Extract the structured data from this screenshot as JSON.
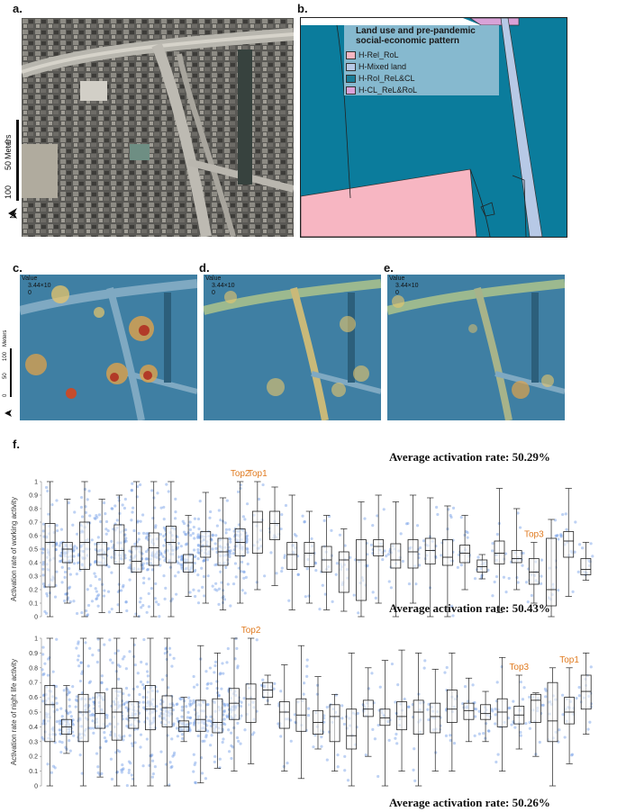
{
  "panels": {
    "a": "a.",
    "b": "b.",
    "c": "c.",
    "d": "d.",
    "e": "e.",
    "f": "f."
  },
  "scale": {
    "meters": "Meters",
    "t100": "100",
    "t50": "50",
    "t0": "0",
    "north": "N"
  },
  "legend": {
    "title": "Land use and pre-pandemic social-economic pattern",
    "items": [
      {
        "label": "H-Rel_RoL",
        "color": "#f7b6c2"
      },
      {
        "label": "H-Mixed land",
        "color": "#b7c9e6"
      },
      {
        "label": "H-RoI_ReL&CL",
        "color": "#1a7d97"
      },
      {
        "label": "H-CL_ReL&RoL",
        "color": "#d9a2d8"
      }
    ]
  },
  "heat_legend": {
    "title": "Value",
    "max": "3.44×10",
    "min": "0"
  },
  "colors": {
    "landuse_main": "#0b7c9c",
    "pink": "#f7b6c2",
    "mixed": "#b7c9e6",
    "violet": "#d9a2d8",
    "box_points": "#6f9be6",
    "top_label": "#e07a1f"
  },
  "averages": {
    "top": "Average activation rate: 50.29%",
    "middle": "Average activation rate: 50.43%",
    "bottom": "Average activation rate: 50.26%"
  },
  "chart_data": [
    {
      "type": "box",
      "ylabel": "Activation rate of working activity",
      "ylim": [
        0,
        1
      ],
      "yticks": [
        "0",
        "0.1",
        "0.2",
        "0.3",
        "0.4",
        "0.5",
        "0.6",
        "0.7",
        "0.8",
        "0.9",
        "1"
      ],
      "annotations": [
        {
          "label": "Top2",
          "index": 11
        },
        {
          "label": "Top1",
          "index": 12
        },
        {
          "label": "Top3",
          "index": 28
        }
      ],
      "boxes": [
        [
          0.0,
          0.22,
          0.55,
          0.69,
          1.0
        ],
        [
          0.1,
          0.4,
          0.5,
          0.55,
          0.87
        ],
        [
          0.0,
          0.35,
          0.55,
          0.7,
          1.0
        ],
        [
          0.03,
          0.38,
          0.46,
          0.55,
          0.87
        ],
        [
          0.03,
          0.39,
          0.49,
          0.68,
          0.9
        ],
        [
          0.0,
          0.33,
          0.41,
          0.52,
          1.0
        ],
        [
          0.0,
          0.38,
          0.51,
          0.62,
          1.0
        ],
        [
          0.0,
          0.4,
          0.55,
          0.67,
          1.0
        ],
        [
          0.15,
          0.33,
          0.4,
          0.46,
          0.75
        ],
        [
          0.1,
          0.44,
          0.52,
          0.63,
          0.92
        ],
        [
          0.05,
          0.38,
          0.48,
          0.58,
          0.88
        ],
        [
          0.1,
          0.45,
          0.55,
          0.65,
          1.0
        ],
        [
          0.2,
          0.47,
          0.7,
          0.78,
          1.0
        ],
        [
          0.23,
          0.57,
          0.69,
          0.78,
          0.96
        ],
        [
          0.05,
          0.35,
          0.46,
          0.55,
          0.9
        ],
        [
          0.1,
          0.37,
          0.47,
          0.55,
          0.78
        ],
        [
          0.05,
          0.33,
          0.42,
          0.52,
          0.75
        ],
        [
          0.04,
          0.18,
          0.42,
          0.48,
          0.65
        ],
        [
          0.0,
          0.12,
          0.42,
          0.57,
          0.85
        ],
        [
          0.1,
          0.45,
          0.52,
          0.57,
          0.9
        ],
        [
          0.0,
          0.36,
          0.42,
          0.54,
          0.85
        ],
        [
          0.1,
          0.36,
          0.48,
          0.57,
          0.9
        ],
        [
          0.0,
          0.39,
          0.49,
          0.58,
          0.88
        ],
        [
          0.0,
          0.38,
          0.44,
          0.57,
          0.82
        ],
        [
          0.2,
          0.4,
          0.47,
          0.53,
          0.75
        ],
        [
          0.28,
          0.33,
          0.37,
          0.42,
          0.46
        ],
        [
          0.03,
          0.39,
          0.47,
          0.56,
          0.95
        ],
        [
          0.2,
          0.4,
          0.43,
          0.49,
          0.8
        ],
        [
          0.1,
          0.24,
          0.33,
          0.43,
          0.55
        ],
        [
          0.0,
          0.08,
          0.2,
          0.58,
          0.72
        ],
        [
          0.15,
          0.44,
          0.56,
          0.63,
          0.95
        ],
        [
          0.27,
          0.31,
          0.35,
          0.43,
          0.55
        ]
      ]
    },
    {
      "type": "box",
      "ylabel": "Activation rate of night life activity",
      "ylim": [
        0,
        1
      ],
      "yticks": [
        "0",
        "0.1",
        "0.2",
        "0.3",
        "0.4",
        "0.5",
        "0.6",
        "0.7",
        "0.8",
        "0.9",
        "1"
      ],
      "annotations": [
        {
          "label": "Top2",
          "index": 12
        },
        {
          "label": "Top3",
          "index": 28
        },
        {
          "label": "Top1",
          "index": 31
        }
      ],
      "boxes": [
        [
          0.0,
          0.3,
          0.55,
          0.68,
          1.0
        ],
        [
          0.22,
          0.35,
          0.4,
          0.45,
          0.68
        ],
        [
          0.0,
          0.3,
          0.5,
          0.62,
          1.0
        ],
        [
          0.06,
          0.39,
          0.49,
          0.63,
          1.0
        ],
        [
          0.0,
          0.31,
          0.5,
          0.66,
          1.0
        ],
        [
          0.0,
          0.39,
          0.46,
          0.57,
          1.0
        ],
        [
          0.0,
          0.38,
          0.52,
          0.68,
          1.0
        ],
        [
          0.0,
          0.4,
          0.53,
          0.61,
          1.0
        ],
        [
          0.3,
          0.37,
          0.4,
          0.44,
          0.6
        ],
        [
          0.02,
          0.37,
          0.45,
          0.58,
          0.95
        ],
        [
          0.12,
          0.36,
          0.43,
          0.59,
          0.9
        ],
        [
          0.1,
          0.45,
          0.56,
          0.66,
          1.0
        ],
        [
          0.15,
          0.43,
          0.59,
          0.69,
          1.0
        ],
        [
          0.55,
          0.6,
          0.65,
          0.7,
          0.75
        ],
        [
          0.1,
          0.39,
          0.5,
          0.57,
          0.82
        ],
        [
          0.05,
          0.37,
          0.48,
          0.59,
          0.95
        ],
        [
          0.25,
          0.35,
          0.43,
          0.51,
          0.74
        ],
        [
          0.1,
          0.3,
          0.47,
          0.55,
          0.62
        ],
        [
          0.0,
          0.25,
          0.34,
          0.52,
          0.9
        ],
        [
          0.2,
          0.47,
          0.52,
          0.58,
          0.8
        ],
        [
          0.0,
          0.41,
          0.46,
          0.52,
          0.85
        ],
        [
          0.1,
          0.38,
          0.47,
          0.57,
          0.92
        ],
        [
          0.0,
          0.35,
          0.5,
          0.58,
          0.9
        ],
        [
          0.1,
          0.36,
          0.47,
          0.56,
          0.79
        ],
        [
          0.1,
          0.43,
          0.52,
          0.65,
          0.9
        ],
        [
          0.3,
          0.45,
          0.51,
          0.56,
          0.73
        ],
        [
          0.3,
          0.45,
          0.49,
          0.55,
          0.64
        ],
        [
          0.1,
          0.4,
          0.5,
          0.59,
          0.87
        ],
        [
          0.25,
          0.42,
          0.48,
          0.54,
          0.75
        ],
        [
          0.2,
          0.43,
          0.58,
          0.62,
          0.63
        ],
        [
          0.0,
          0.3,
          0.44,
          0.7,
          0.8
        ],
        [
          0.15,
          0.42,
          0.5,
          0.6,
          0.8
        ],
        [
          0.35,
          0.52,
          0.64,
          0.75,
          0.9
        ]
      ]
    }
  ]
}
